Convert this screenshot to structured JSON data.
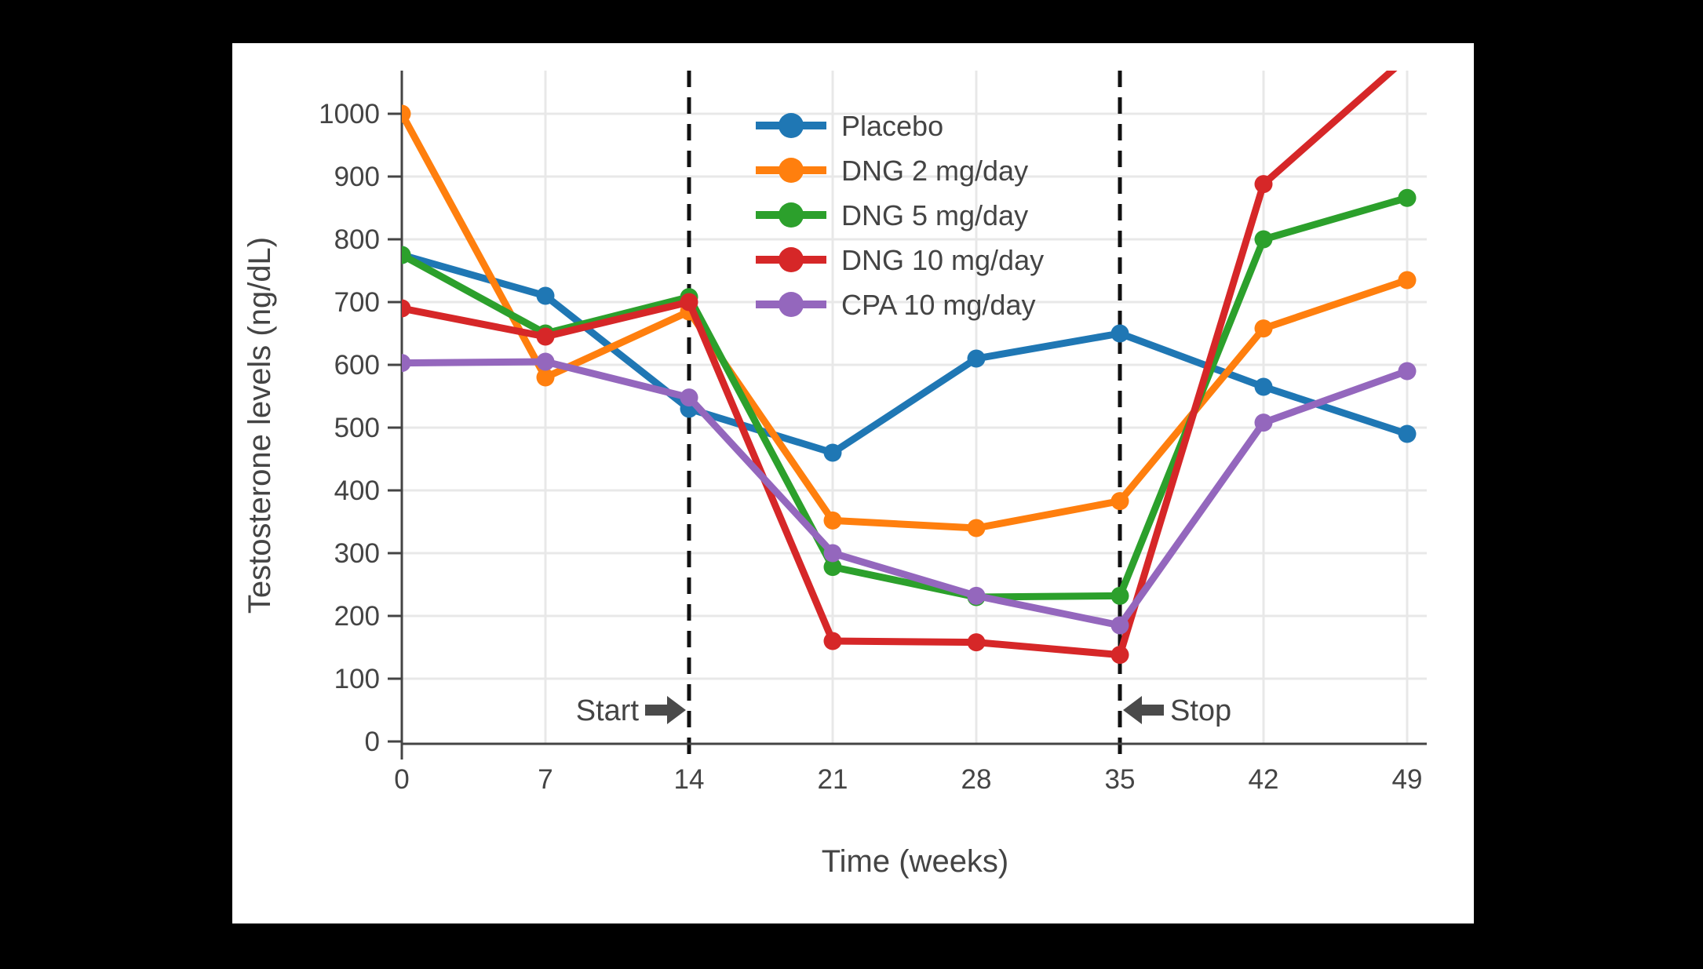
{
  "page": {
    "background": "#000000",
    "panel_background": "#ffffff"
  },
  "chart_data": {
    "type": "line",
    "title": "",
    "xlabel": "Time (weeks)",
    "ylabel": "Testosterone levels (ng/dL)",
    "weeks": [
      0,
      7,
      14,
      21,
      28,
      35,
      42,
      49
    ],
    "xticks": [
      0,
      7,
      14,
      21,
      28,
      35,
      42,
      49
    ],
    "yticks": [
      0,
      100,
      200,
      300,
      400,
      500,
      600,
      700,
      800,
      900,
      1000
    ],
    "xlim": [
      0,
      50
    ],
    "ylim": [
      0,
      1069
    ],
    "grid": true,
    "x_gridlines": [
      7,
      21,
      28,
      42,
      49
    ],
    "legend_position": "top-center",
    "colors": {
      "axis": "#444444",
      "text": "#444444",
      "grid": "#e8e8e8",
      "vline": "#111111",
      "annotation_arrow": "#4a4a4a"
    },
    "series": [
      {
        "name": "Placebo",
        "color": "#1f77b4",
        "values": [
          775,
          710,
          530,
          460,
          610,
          650,
          565,
          490
        ]
      },
      {
        "name": "DNG 2 mg/day",
        "color": "#ff7f0e",
        "values": [
          1000,
          580,
          685,
          352,
          340,
          383,
          658,
          735
        ]
      },
      {
        "name": "DNG 5 mg/day",
        "color": "#2ca02c",
        "values": [
          775,
          650,
          708,
          278,
          230,
          232,
          800,
          866
        ]
      },
      {
        "name": "DNG 10 mg/day",
        "color": "#d62728",
        "values": [
          690,
          645,
          700,
          160,
          158,
          138,
          888,
          1090
        ],
        "note": "week-49 point exceeds visible axis range; line exits plot top"
      },
      {
        "name": "CPA 10 mg/day",
        "color": "#9467bd",
        "values": [
          603,
          605,
          548,
          300,
          232,
          185,
          508,
          590
        ]
      }
    ],
    "vlines": [
      {
        "week": 14,
        "style": "dashed",
        "name": "start"
      },
      {
        "week": 35,
        "style": "dashed",
        "name": "stop"
      }
    ],
    "annotations": [
      {
        "text": "Start",
        "arrow": "right",
        "week": 14,
        "y_value": 50
      },
      {
        "text": "Stop",
        "arrow": "left",
        "week": 35,
        "y_value": 50
      }
    ]
  }
}
